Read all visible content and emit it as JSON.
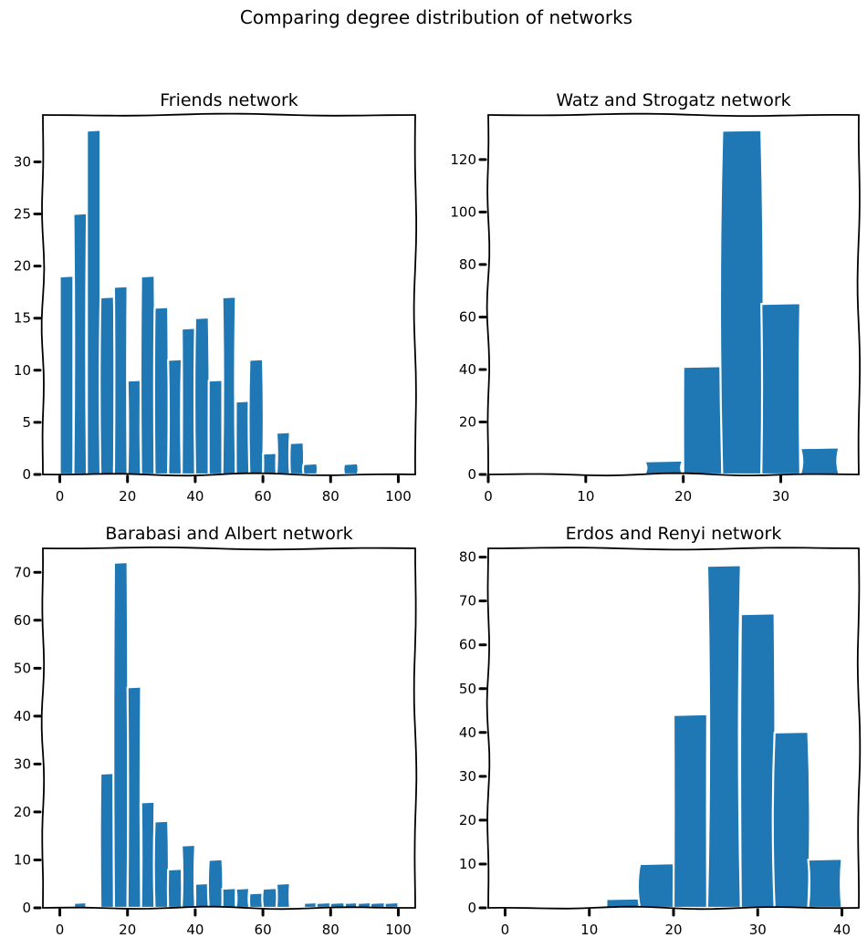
{
  "figure": {
    "title": "Comparing degree distribution of networks",
    "bar_color": "#1f77b4"
  },
  "chart_data": [
    {
      "type": "bar",
      "title": "Friends network",
      "xlabel": "",
      "ylabel": "",
      "xlim": [
        -5,
        105
      ],
      "ylim": [
        0,
        34.5
      ],
      "x_ticks": [
        0,
        20,
        40,
        60,
        80,
        100
      ],
      "y_ticks": [
        0,
        5,
        10,
        15,
        20,
        25,
        30
      ],
      "bins": [
        {
          "x0": 0,
          "x1": 4,
          "value": 19
        },
        {
          "x0": 4,
          "x1": 8,
          "value": 25
        },
        {
          "x0": 8,
          "x1": 12,
          "value": 33
        },
        {
          "x0": 12,
          "x1": 16,
          "value": 17
        },
        {
          "x0": 16,
          "x1": 20,
          "value": 18
        },
        {
          "x0": 20,
          "x1": 24,
          "value": 9
        },
        {
          "x0": 24,
          "x1": 28,
          "value": 19
        },
        {
          "x0": 28,
          "x1": 32,
          "value": 16
        },
        {
          "x0": 32,
          "x1": 36,
          "value": 11
        },
        {
          "x0": 36,
          "x1": 40,
          "value": 14
        },
        {
          "x0": 40,
          "x1": 44,
          "value": 15
        },
        {
          "x0": 44,
          "x1": 48,
          "value": 9
        },
        {
          "x0": 48,
          "x1": 52,
          "value": 17
        },
        {
          "x0": 52,
          "x1": 56,
          "value": 7
        },
        {
          "x0": 56,
          "x1": 60,
          "value": 11
        },
        {
          "x0": 60,
          "x1": 64,
          "value": 2
        },
        {
          "x0": 64,
          "x1": 68,
          "value": 4
        },
        {
          "x0": 68,
          "x1": 72,
          "value": 3
        },
        {
          "x0": 72,
          "x1": 76,
          "value": 1
        },
        {
          "x0": 76,
          "x1": 80,
          "value": 0
        },
        {
          "x0": 80,
          "x1": 84,
          "value": 0
        },
        {
          "x0": 84,
          "x1": 88,
          "value": 1
        },
        {
          "x0": 88,
          "x1": 92,
          "value": 0
        },
        {
          "x0": 92,
          "x1": 96,
          "value": 0
        },
        {
          "x0": 96,
          "x1": 100,
          "value": 0
        }
      ]
    },
    {
      "type": "bar",
      "title": "Watz and Strogatz network",
      "xlabel": "",
      "ylabel": "",
      "xlim": [
        0,
        38
      ],
      "ylim": [
        0,
        137
      ],
      "x_ticks": [
        0,
        10,
        20,
        30
      ],
      "y_ticks": [
        0,
        20,
        40,
        60,
        80,
        100,
        120
      ],
      "bins": [
        {
          "x0": 0,
          "x1": 4,
          "value": 0
        },
        {
          "x0": 4,
          "x1": 8,
          "value": 0
        },
        {
          "x0": 8,
          "x1": 12,
          "value": 0
        },
        {
          "x0": 12,
          "x1": 16,
          "value": 0
        },
        {
          "x0": 16,
          "x1": 20,
          "value": 5
        },
        {
          "x0": 20,
          "x1": 24,
          "value": 41
        },
        {
          "x0": 24,
          "x1": 28,
          "value": 131
        },
        {
          "x0": 28,
          "x1": 32,
          "value": 65
        },
        {
          "x0": 32,
          "x1": 36,
          "value": 10
        }
      ]
    },
    {
      "type": "bar",
      "title": "Barabasi and Albert network",
      "xlabel": "",
      "ylabel": "",
      "xlim": [
        -5,
        105
      ],
      "ylim": [
        0,
        75
      ],
      "x_ticks": [
        0,
        20,
        40,
        60,
        80,
        100
      ],
      "y_ticks": [
        0,
        10,
        20,
        30,
        40,
        50,
        60,
        70
      ],
      "bins": [
        {
          "x0": 4,
          "x1": 8,
          "value": 1
        },
        {
          "x0": 12,
          "x1": 16,
          "value": 28
        },
        {
          "x0": 16,
          "x1": 20,
          "value": 72
        },
        {
          "x0": 20,
          "x1": 24,
          "value": 46
        },
        {
          "x0": 24,
          "x1": 28,
          "value": 22
        },
        {
          "x0": 28,
          "x1": 32,
          "value": 18
        },
        {
          "x0": 32,
          "x1": 36,
          "value": 8
        },
        {
          "x0": 36,
          "x1": 40,
          "value": 13
        },
        {
          "x0": 40,
          "x1": 44,
          "value": 5
        },
        {
          "x0": 44,
          "x1": 48,
          "value": 10
        },
        {
          "x0": 48,
          "x1": 52,
          "value": 4
        },
        {
          "x0": 52,
          "x1": 56,
          "value": 4
        },
        {
          "x0": 56,
          "x1": 60,
          "value": 3
        },
        {
          "x0": 60,
          "x1": 64,
          "value": 4
        },
        {
          "x0": 64,
          "x1": 68,
          "value": 5
        },
        {
          "x0": 72,
          "x1": 76,
          "value": 1
        },
        {
          "x0": 76,
          "x1": 80,
          "value": 1
        },
        {
          "x0": 80,
          "x1": 84,
          "value": 1
        },
        {
          "x0": 84,
          "x1": 88,
          "value": 1
        },
        {
          "x0": 88,
          "x1": 92,
          "value": 1
        },
        {
          "x0": 92,
          "x1": 96,
          "value": 1
        },
        {
          "x0": 96,
          "x1": 100,
          "value": 1
        }
      ]
    },
    {
      "type": "bar",
      "title": "Erdos and Renyi network",
      "xlabel": "",
      "ylabel": "",
      "xlim": [
        -2,
        42
      ],
      "ylim": [
        0,
        82
      ],
      "x_ticks": [
        0,
        10,
        20,
        30,
        40
      ],
      "y_ticks": [
        0,
        10,
        20,
        30,
        40,
        50,
        60,
        70,
        80
      ],
      "bins": [
        {
          "x0": 12,
          "x1": 16,
          "value": 2
        },
        {
          "x0": 16,
          "x1": 20,
          "value": 10
        },
        {
          "x0": 20,
          "x1": 24,
          "value": 44
        },
        {
          "x0": 24,
          "x1": 28,
          "value": 78
        },
        {
          "x0": 28,
          "x1": 32,
          "value": 67
        },
        {
          "x0": 32,
          "x1": 36,
          "value": 40
        },
        {
          "x0": 36,
          "x1": 40,
          "value": 11
        }
      ]
    }
  ]
}
